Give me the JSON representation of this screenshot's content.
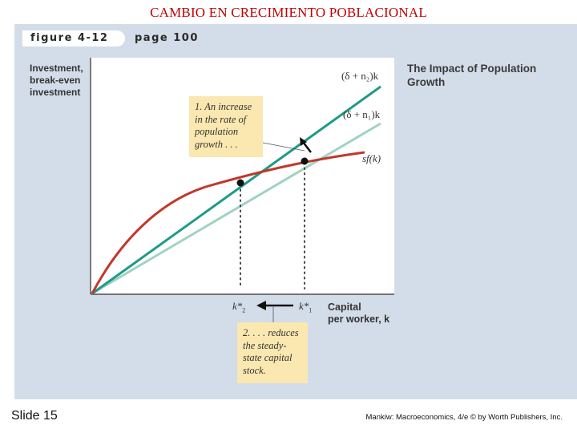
{
  "slide": {
    "title": "CAMBIO EN CRECIMIENTO POBLACIONAL",
    "number": "Slide 15",
    "credit": "Mankiw: Macroeconomics, 4/e © by Worth Publishers, Inc."
  },
  "figure": {
    "tab_label": "figure 4-12",
    "page_label": "page 100",
    "side_title": "The Impact of Population Growth",
    "y_axis_label": "Investment, break-even investment",
    "x_axis_label_line1": "Capital",
    "x_axis_label_line2": "per worker, k",
    "curve_labels": {
      "n2": "(δ + n₂)k",
      "n1": "(δ + n₁)k",
      "sf": "sf(k)"
    },
    "k_labels": {
      "k2": "k*",
      "k2_sub": "2",
      "k1": "k*",
      "k1_sub": "1"
    },
    "callout_1": "1. An increase in the rate of population growth . . .",
    "callout_2": "2. . . . reduces the steady-state capital stock.",
    "colors": {
      "panel": "#d3dde9",
      "sf_curve": "#c0392b",
      "line_n2": "#1f9a8a",
      "line_n1": "#9fd3c0",
      "callout": "#fbe7b0",
      "title": "#c00000"
    }
  }
}
